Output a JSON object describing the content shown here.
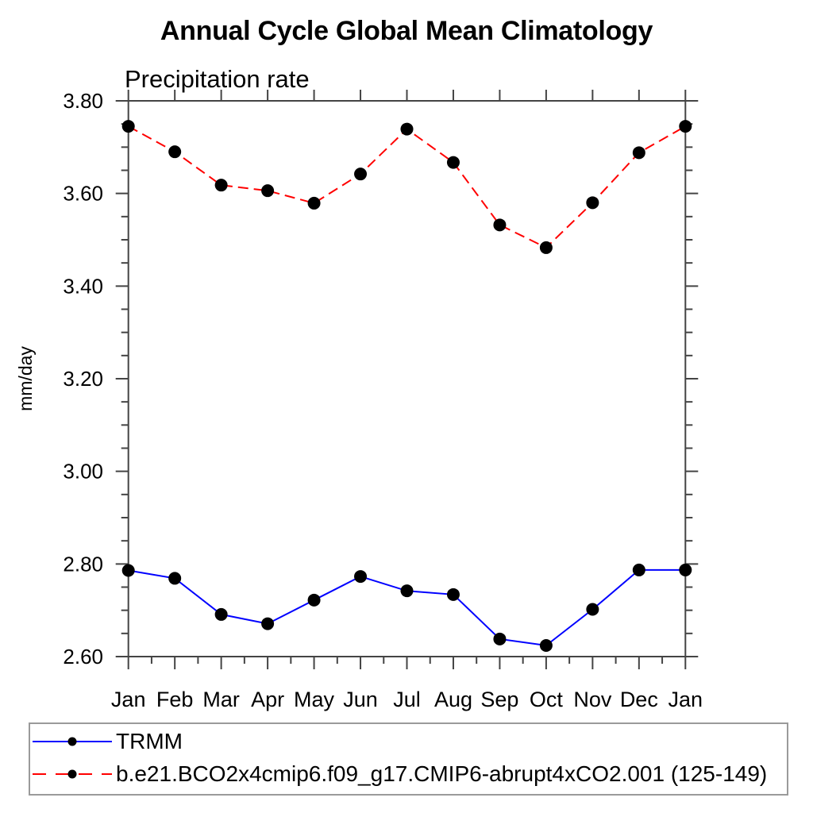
{
  "chart_data": {
    "type": "line",
    "title": "Annual Cycle Global Mean Climatology",
    "subtitle": "Precipitation rate",
    "xlabel": "",
    "ylabel": "mm/day",
    "categories": [
      "Jan",
      "Feb",
      "Mar",
      "Apr",
      "May",
      "Jun",
      "Jul",
      "Aug",
      "Sep",
      "Oct",
      "Nov",
      "Dec",
      "Jan"
    ],
    "ylim": [
      2.6,
      3.8
    ],
    "y_major_step": 0.2,
    "y_minor_step": 0.05,
    "y_tick_labels": [
      "2.60",
      "2.80",
      "3.00",
      "3.20",
      "3.40",
      "3.60",
      "3.80"
    ],
    "grid": false,
    "legend_position": "bottom",
    "marker": "filled-circle",
    "marker_color": "#000000",
    "series": [
      {
        "name": "TRMM",
        "color": "#0000ff",
        "style": "solid",
        "values": [
          2.786,
          2.769,
          2.691,
          2.671,
          2.722,
          2.773,
          2.742,
          2.734,
          2.638,
          2.624,
          2.702,
          2.787,
          2.787
        ]
      },
      {
        "name": "b.e21.BCO2x4cmip6.f09_g17.CMIP6-abrupt4xCO2.001 (125-149)",
        "color": "#ff0000",
        "style": "dashed",
        "values": [
          3.745,
          3.69,
          3.618,
          3.606,
          3.579,
          3.642,
          3.739,
          3.667,
          3.532,
          3.483,
          3.58,
          3.688,
          3.745
        ]
      }
    ]
  }
}
